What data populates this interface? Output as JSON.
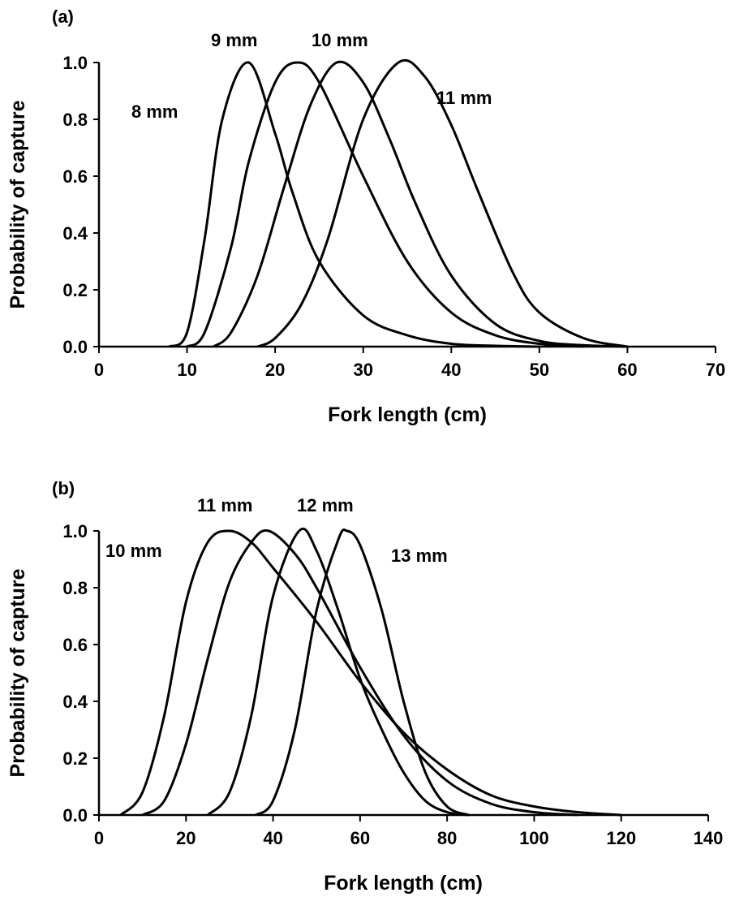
{
  "chart_data": [
    {
      "type": "line",
      "panel_label": "(a)",
      "xlabel": "Fork length (cm)",
      "ylabel": "Probability of capture",
      "xlim": [
        0,
        70
      ],
      "ylim": [
        0,
        1.0
      ],
      "xticks": [
        "0",
        "10",
        "20",
        "30",
        "40",
        "50",
        "60",
        "70"
      ],
      "yticks": [
        "0.0",
        "0.2",
        "0.4",
        "0.6",
        "0.8",
        "1.0"
      ],
      "grid": false,
      "series": [
        {
          "name": "8 mm",
          "x": [
            8,
            10,
            12,
            14,
            17,
            20,
            22,
            25,
            30,
            35,
            40,
            45,
            50
          ],
          "y": [
            0.0,
            0.05,
            0.38,
            0.8,
            1.0,
            0.75,
            0.54,
            0.3,
            0.11,
            0.04,
            0.01,
            0.003,
            0.0
          ]
        },
        {
          "name": "9 mm",
          "x": [
            10,
            12,
            15,
            17,
            20,
            22.5,
            25,
            30,
            35,
            40,
            45,
            50,
            55
          ],
          "y": [
            0.0,
            0.05,
            0.35,
            0.65,
            0.93,
            1.0,
            0.93,
            0.6,
            0.3,
            0.12,
            0.04,
            0.01,
            0.0
          ]
        },
        {
          "name": "10 mm",
          "x": [
            13,
            15,
            18,
            21,
            24,
            27,
            30,
            33,
            36,
            40,
            45,
            50,
            55,
            60
          ],
          "y": [
            0.0,
            0.05,
            0.25,
            0.56,
            0.85,
            1.0,
            0.93,
            0.73,
            0.5,
            0.25,
            0.08,
            0.02,
            0.005,
            0.0
          ]
        },
        {
          "name": "11 mm",
          "x": [
            18,
            20,
            23,
            26,
            30,
            34,
            37,
            40,
            43,
            47,
            50,
            55,
            60
          ],
          "y": [
            0.0,
            0.03,
            0.15,
            0.38,
            0.8,
            1.0,
            0.95,
            0.78,
            0.55,
            0.26,
            0.12,
            0.03,
            0.0
          ]
        }
      ],
      "annotations": [
        "8 mm",
        "9 mm",
        "10 mm",
        "11 mm"
      ]
    },
    {
      "type": "line",
      "panel_label": "(b)",
      "xlabel": "Fork length (cm)",
      "ylabel": "Probability of capture",
      "xlim": [
        0,
        140
      ],
      "ylim": [
        0,
        1.0
      ],
      "xticks": [
        "0",
        "20",
        "40",
        "60",
        "80",
        "100",
        "120",
        "140"
      ],
      "yticks": [
        "0.0",
        "0.2",
        "0.4",
        "0.6",
        "0.8",
        "1.0"
      ],
      "grid": false,
      "series": [
        {
          "name": "10 mm",
          "x": [
            5,
            10,
            15,
            20,
            25,
            30,
            35,
            40,
            50,
            60,
            70,
            80,
            90,
            100,
            110,
            120
          ],
          "y": [
            0.0,
            0.08,
            0.35,
            0.75,
            0.96,
            1.0,
            0.96,
            0.87,
            0.68,
            0.47,
            0.29,
            0.16,
            0.07,
            0.03,
            0.01,
            0.0
          ]
        },
        {
          "name": "11 mm",
          "x": [
            10,
            15,
            20,
            25,
            30,
            35,
            39,
            45,
            50,
            60,
            70,
            80,
            90,
            100,
            110
          ],
          "y": [
            0.0,
            0.05,
            0.25,
            0.55,
            0.82,
            0.96,
            1.0,
            0.92,
            0.8,
            0.52,
            0.28,
            0.12,
            0.04,
            0.01,
            0.0
          ]
        },
        {
          "name": "12 mm",
          "x": [
            25,
            30,
            35,
            40,
            46,
            50,
            55,
            60,
            65,
            70,
            75,
            80,
            85
          ],
          "y": [
            0.0,
            0.08,
            0.35,
            0.77,
            1.0,
            0.93,
            0.72,
            0.48,
            0.3,
            0.15,
            0.05,
            0.01,
            0.0
          ]
        },
        {
          "name": "13 mm",
          "x": [
            36,
            40,
            45,
            50,
            55,
            57,
            60,
            65,
            70,
            75,
            80,
            85
          ],
          "y": [
            0.0,
            0.05,
            0.3,
            0.72,
            0.97,
            1.0,
            0.95,
            0.72,
            0.4,
            0.15,
            0.03,
            0.0
          ]
        }
      ],
      "annotations": [
        "10 mm",
        "11 mm",
        "12 mm",
        "13 mm"
      ]
    }
  ]
}
